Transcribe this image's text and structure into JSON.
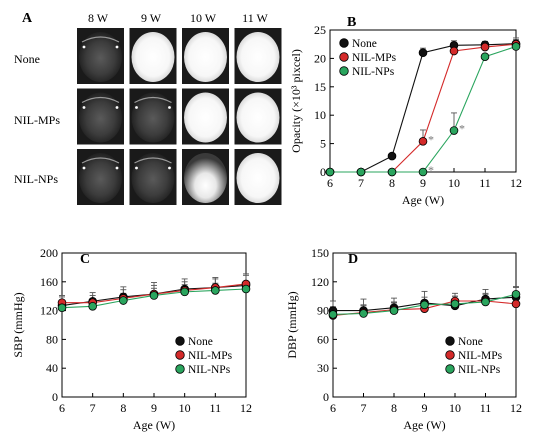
{
  "panel_a": {
    "label": "A",
    "week_labels": [
      "8 W",
      "9 W",
      "10 W",
      "11 W"
    ],
    "row_labels": [
      "None",
      "NIL-MPs",
      "NIL-NPs"
    ],
    "lens_states": [
      [
        "clear",
        "opaque",
        "opaque",
        "opaque"
      ],
      [
        "clear",
        "clear",
        "opaque",
        "opaque"
      ],
      [
        "clear",
        "clear",
        "partial",
        "opaque"
      ]
    ]
  },
  "series_colors": {
    "None": "#111111",
    "NIL-MPs": "#d42a2a",
    "NIL-NPs": "#2aa55e"
  },
  "chart_data": [
    {
      "panel": "B",
      "type": "line",
      "x": [
        6,
        7,
        8,
        9,
        10,
        11,
        12
      ],
      "xlim": [
        6,
        12
      ],
      "ylim": [
        0,
        25
      ],
      "yticks": [
        0,
        5,
        10,
        15,
        20,
        25
      ],
      "xlabel": "Age (W)",
      "ylabel": "Opacity (×10³ pixcel)",
      "legend": "top-left",
      "series": [
        {
          "name": "None",
          "values": [
            0,
            0,
            2.8,
            21,
            22.3,
            22.4,
            22.6
          ],
          "err": [
            0,
            0,
            0,
            0.8,
            0.8,
            0.6,
            1.0
          ]
        },
        {
          "name": "NIL-MPs",
          "values": [
            0,
            0,
            0,
            5.4,
            21.3,
            22.0,
            22.5
          ],
          "err": [
            0,
            0,
            0,
            2.0,
            0,
            0.8,
            0.8
          ]
        },
        {
          "name": "NIL-NPs",
          "values": [
            0,
            0,
            0,
            0,
            7.3,
            20.3,
            22.1
          ],
          "err": [
            0,
            0,
            0,
            0,
            3.1,
            0,
            0.6
          ]
        }
      ],
      "annotations": [
        {
          "text": "*",
          "x": 9,
          "y": 5.4
        },
        {
          "text": "*",
          "x": 10,
          "y": 7.3
        },
        {
          "text": "*",
          "x": 9,
          "y": 0
        }
      ]
    },
    {
      "panel": "C",
      "type": "line",
      "x": [
        6,
        7,
        8,
        9,
        10,
        11,
        12
      ],
      "xlim": [
        6,
        12
      ],
      "ylim": [
        0,
        200
      ],
      "yticks": [
        0,
        40,
        80,
        120,
        160,
        200
      ],
      "xlabel": "Age (W)",
      "ylabel": "SBP (mmHg)",
      "legend": "bottom-right",
      "series": [
        {
          "name": "None",
          "values": [
            127,
            133,
            139,
            143,
            150,
            152,
            155
          ],
          "err": [
            12,
            12,
            14,
            16,
            14,
            14,
            16
          ]
        },
        {
          "name": "NIL-MPs",
          "values": [
            131,
            131,
            137,
            143,
            148,
            152,
            157
          ],
          "err": [
            10,
            10,
            12,
            12,
            12,
            12,
            12
          ]
        },
        {
          "name": "NIL-NPs",
          "values": [
            124,
            126,
            134,
            141,
            146,
            148,
            150
          ],
          "err": [
            8,
            8,
            10,
            10,
            10,
            10,
            10
          ]
        }
      ]
    },
    {
      "panel": "D",
      "type": "line",
      "x": [
        6,
        7,
        8,
        9,
        10,
        11,
        12
      ],
      "xlim": [
        6,
        12
      ],
      "ylim": [
        0,
        150
      ],
      "yticks": [
        0,
        30,
        60,
        90,
        120,
        150
      ],
      "xlabel": "Age (W)",
      "ylabel": "DBP (mmHg)",
      "legend": "bottom-right",
      "series": [
        {
          "name": "None",
          "values": [
            90,
            90,
            93,
            98,
            95,
            102,
            104
          ],
          "err": [
            10,
            12,
            10,
            12,
            10,
            10,
            10
          ]
        },
        {
          "name": "NIL-MPs",
          "values": [
            85,
            88,
            91,
            92,
            100,
            100,
            97
          ],
          "err": [
            8,
            8,
            8,
            8,
            8,
            8,
            8
          ]
        },
        {
          "name": "NIL-NPs",
          "values": [
            86,
            87,
            90,
            96,
            97,
            99,
            107
          ],
          "err": [
            8,
            8,
            8,
            8,
            8,
            8,
            8
          ]
        }
      ]
    }
  ]
}
